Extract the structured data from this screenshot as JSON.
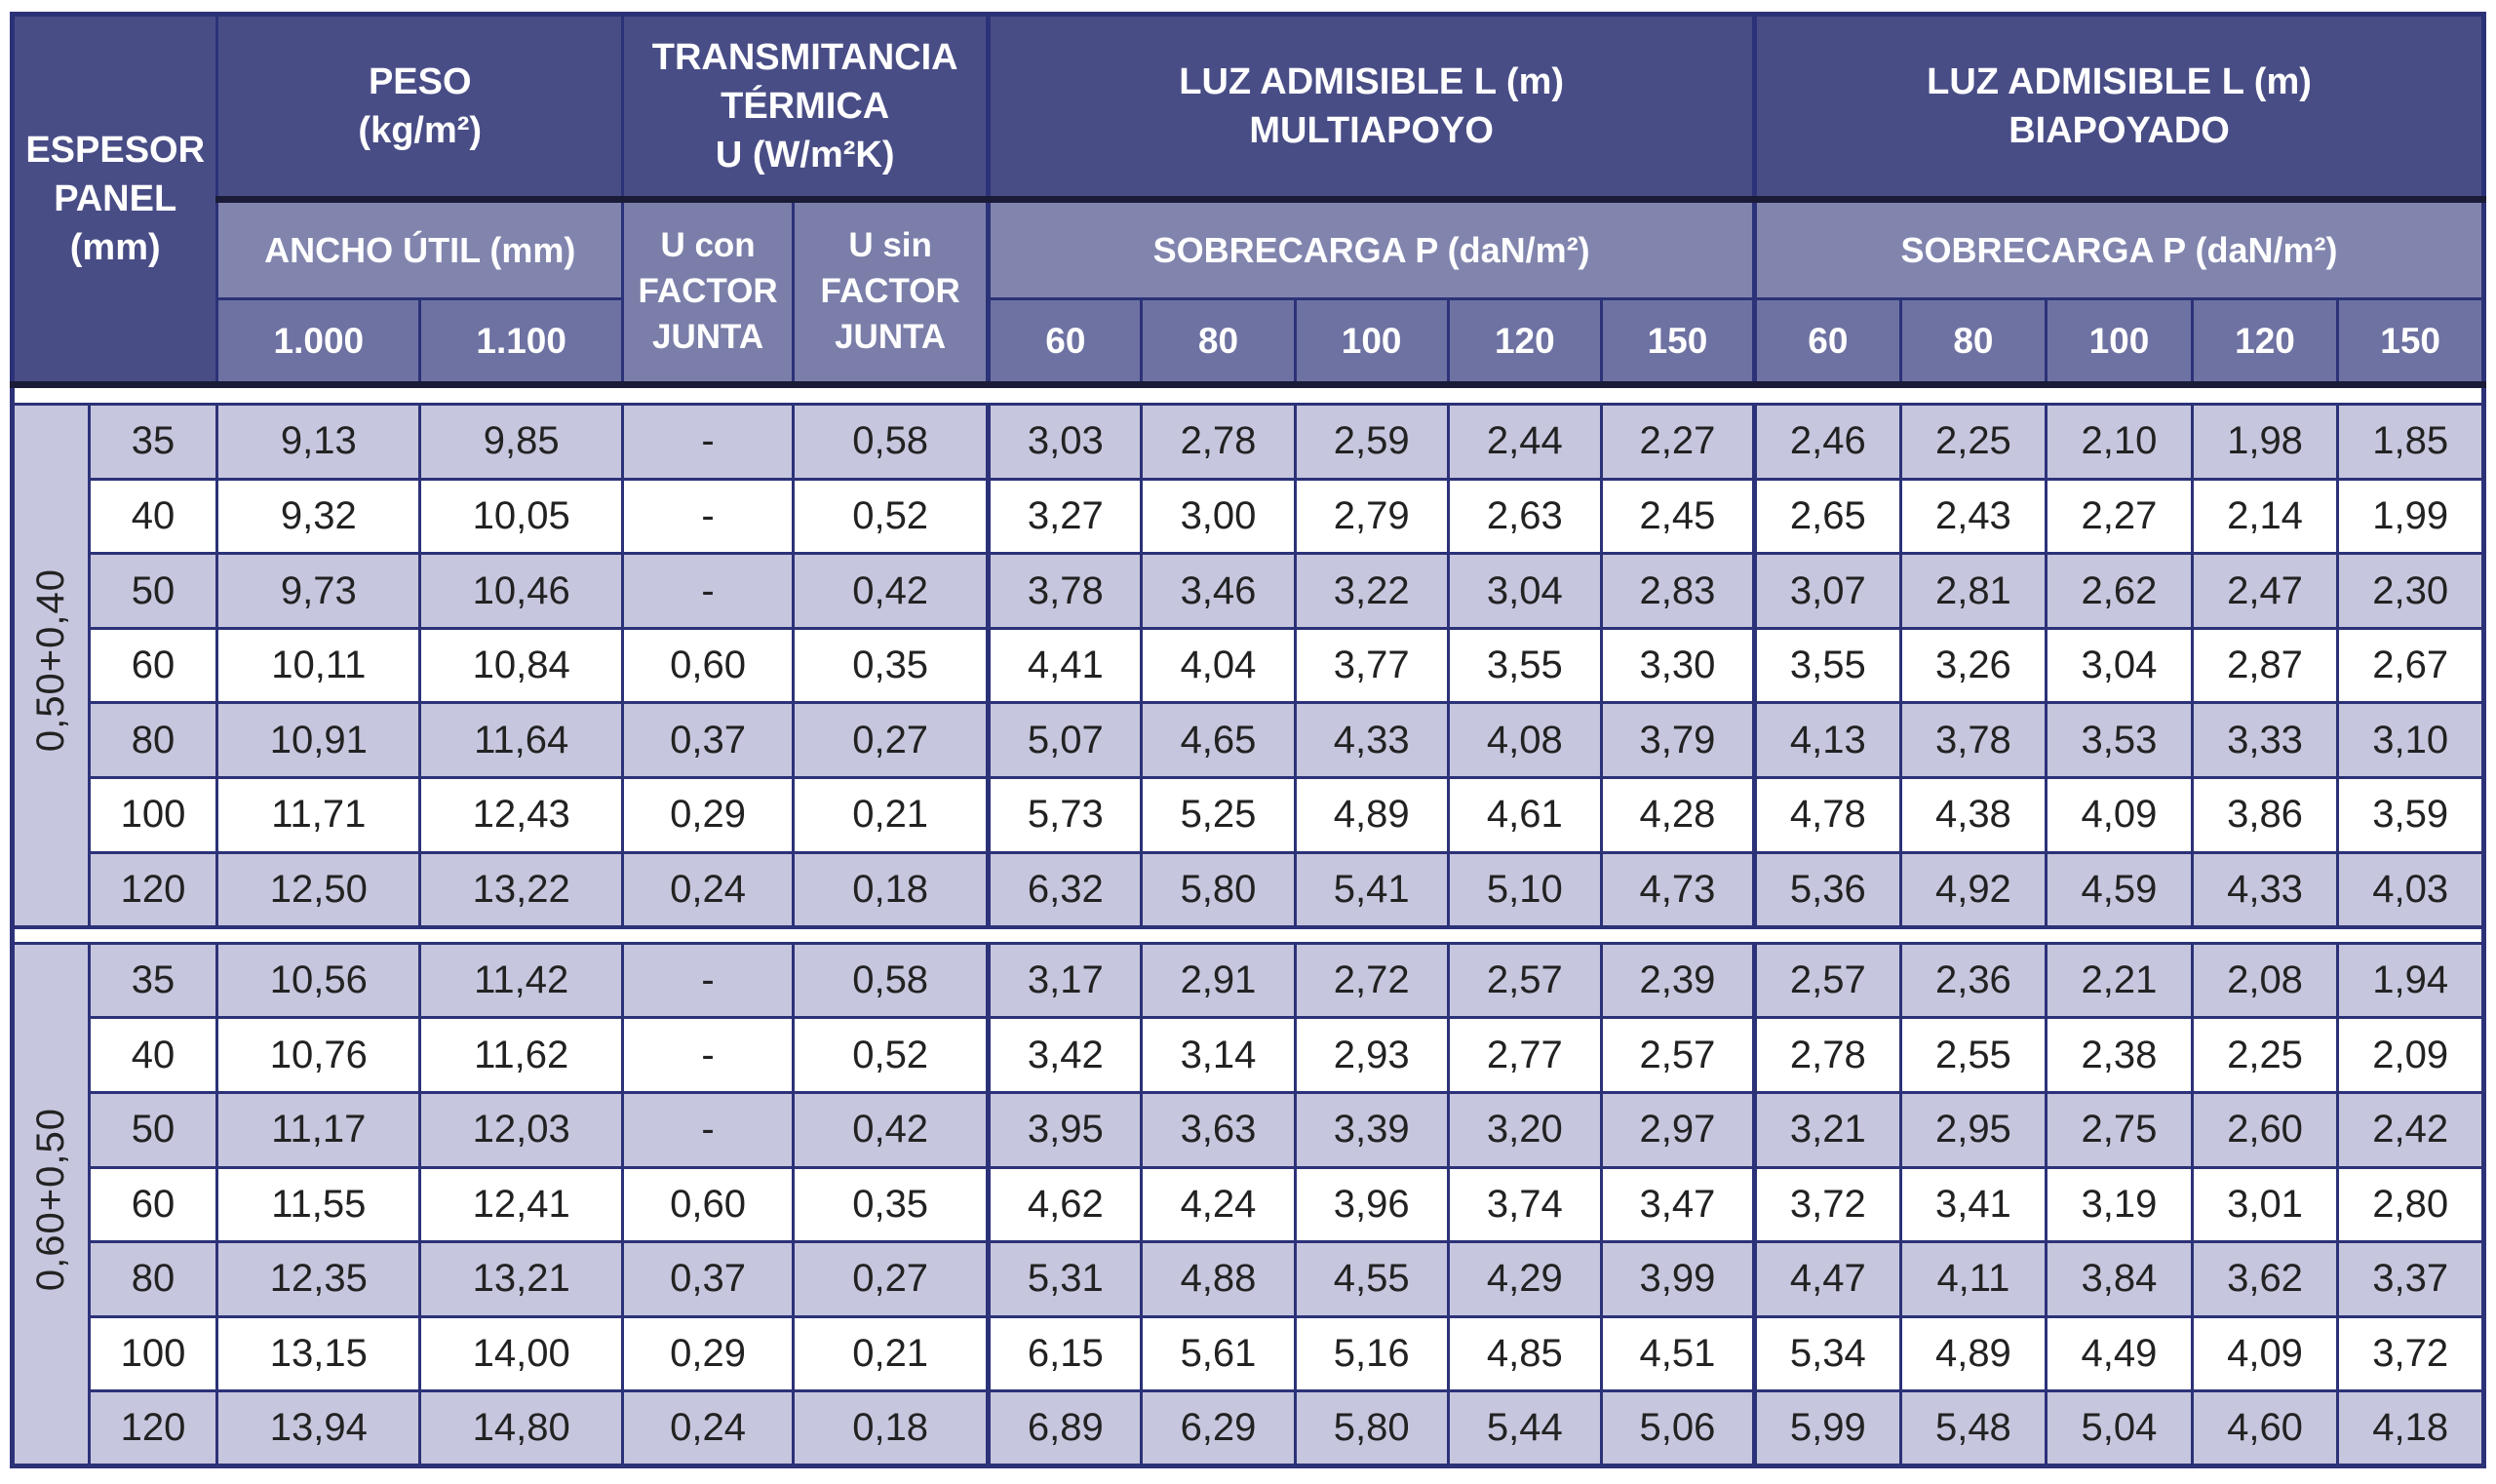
{
  "table": {
    "header": {
      "espesor": "ESPESOR\nPANEL\n(mm)",
      "peso": "PESO\n(kg/m²)",
      "transmitancia": "TRANSMITANCIA\nTÉRMICA\nU (W/m²K)",
      "multiapoyo": "LUZ ADMISIBLE L (m)\nMULTIAPOYO",
      "biapoyado": "LUZ ADMISIBLE L (m)\nBIAPOYADO",
      "ancho_util": "ANCHO ÚTIL (mm)",
      "u_con": "U con\nFACTOR\nJUNTA",
      "u_sin": "U sin\nFACTOR\nJUNTA",
      "sobrecarga": "SOBRECARGA P (daN/m²)",
      "ancho_cols": [
        "1.000",
        "1.100"
      ],
      "carga_cols": [
        "60",
        "80",
        "100",
        "120",
        "150"
      ]
    },
    "groups": [
      {
        "label": "0,50+0,40",
        "rows": [
          {
            "espesor": "35",
            "values": [
              "9,13",
              "9,85",
              "-",
              "0,58",
              "3,03",
              "2,78",
              "2,59",
              "2,44",
              "2,27",
              "2,46",
              "2,25",
              "2,10",
              "1,98",
              "1,85"
            ]
          },
          {
            "espesor": "40",
            "values": [
              "9,32",
              "10,05",
              "-",
              "0,52",
              "3,27",
              "3,00",
              "2,79",
              "2,63",
              "2,45",
              "2,65",
              "2,43",
              "2,27",
              "2,14",
              "1,99"
            ]
          },
          {
            "espesor": "50",
            "values": [
              "9,73",
              "10,46",
              "-",
              "0,42",
              "3,78",
              "3,46",
              "3,22",
              "3,04",
              "2,83",
              "3,07",
              "2,81",
              "2,62",
              "2,47",
              "2,30"
            ]
          },
          {
            "espesor": "60",
            "values": [
              "10,11",
              "10,84",
              "0,60",
              "0,35",
              "4,41",
              "4,04",
              "3,77",
              "3,55",
              "3,30",
              "3,55",
              "3,26",
              "3,04",
              "2,87",
              "2,67"
            ]
          },
          {
            "espesor": "80",
            "values": [
              "10,91",
              "11,64",
              "0,37",
              "0,27",
              "5,07",
              "4,65",
              "4,33",
              "4,08",
              "3,79",
              "4,13",
              "3,78",
              "3,53",
              "3,33",
              "3,10"
            ]
          },
          {
            "espesor": "100",
            "values": [
              "11,71",
              "12,43",
              "0,29",
              "0,21",
              "5,73",
              "5,25",
              "4,89",
              "4,61",
              "4,28",
              "4,78",
              "4,38",
              "4,09",
              "3,86",
              "3,59"
            ]
          },
          {
            "espesor": "120",
            "values": [
              "12,50",
              "13,22",
              "0,24",
              "0,18",
              "6,32",
              "5,80",
              "5,41",
              "5,10",
              "4,73",
              "5,36",
              "4,92",
              "4,59",
              "4,33",
              "4,03"
            ]
          }
        ]
      },
      {
        "label": "0,60+0,50",
        "rows": [
          {
            "espesor": "35",
            "values": [
              "10,56",
              "11,42",
              "-",
              "0,58",
              "3,17",
              "2,91",
              "2,72",
              "2,57",
              "2,39",
              "2,57",
              "2,36",
              "2,21",
              "2,08",
              "1,94"
            ]
          },
          {
            "espesor": "40",
            "values": [
              "10,76",
              "11,62",
              "-",
              "0,52",
              "3,42",
              "3,14",
              "2,93",
              "2,77",
              "2,57",
              "2,78",
              "2,55",
              "2,38",
              "2,25",
              "2,09"
            ]
          },
          {
            "espesor": "50",
            "values": [
              "11,17",
              "12,03",
              "-",
              "0,42",
              "3,95",
              "3,63",
              "3,39",
              "3,20",
              "2,97",
              "3,21",
              "2,95",
              "2,75",
              "2,60",
              "2,42"
            ]
          },
          {
            "espesor": "60",
            "values": [
              "11,55",
              "12,41",
              "0,60",
              "0,35",
              "4,62",
              "4,24",
              "3,96",
              "3,74",
              "3,47",
              "3,72",
              "3,41",
              "3,19",
              "3,01",
              "2,80"
            ]
          },
          {
            "espesor": "80",
            "values": [
              "12,35",
              "13,21",
              "0,37",
              "0,27",
              "5,31",
              "4,88",
              "4,55",
              "4,29",
              "3,99",
              "4,47",
              "4,11",
              "3,84",
              "3,62",
              "3,37"
            ]
          },
          {
            "espesor": "100",
            "values": [
              "13,15",
              "14,00",
              "0,29",
              "0,21",
              "6,15",
              "5,61",
              "5,16",
              "4,85",
              "4,51",
              "5,34",
              "4,89",
              "4,49",
              "4,09",
              "3,72"
            ]
          },
          {
            "espesor": "120",
            "values": [
              "13,94",
              "14,80",
              "0,24",
              "0,18",
              "6,89",
              "6,29",
              "5,80",
              "5,44",
              "5,06",
              "5,99",
              "5,48",
              "5,04",
              "4,60",
              "4,18"
            ]
          }
        ]
      }
    ],
    "colors": {
      "header_dark": "#494d86",
      "header_mid": "#8185ae",
      "header_num": "#6e72a2",
      "header_u": "#7a7ea9",
      "row_alt": "#c6c6de",
      "row_white": "#ffffff",
      "border_navy": "#2c3278",
      "border_black": "#1a1b36",
      "text_body": "#222222",
      "text_header": "#ffffff"
    }
  }
}
